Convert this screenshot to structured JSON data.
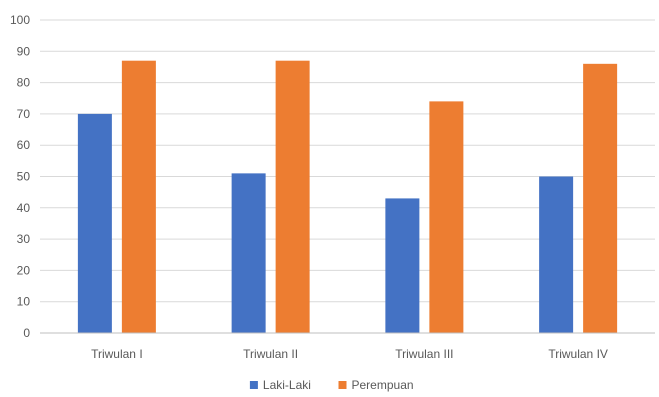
{
  "chart_data": {
    "type": "bar",
    "categories": [
      "Triwulan I",
      "Triwulan II",
      "Triwulan III",
      "Triwulan IV"
    ],
    "series": [
      {
        "name": "Laki-Laki",
        "values": [
          70,
          51,
          43,
          50
        ],
        "color": "#4472C4"
      },
      {
        "name": "Perempuan",
        "values": [
          87,
          87,
          74,
          86
        ],
        "color": "#ED7D31"
      }
    ],
    "ylim": [
      0,
      100
    ],
    "yticks": [
      0,
      10,
      20,
      30,
      40,
      50,
      60,
      70,
      80,
      90,
      100
    ],
    "grid": true,
    "legend_position": "bottom",
    "grid_color": "#D9D9D9",
    "axis_color": "#BFBFBF"
  }
}
